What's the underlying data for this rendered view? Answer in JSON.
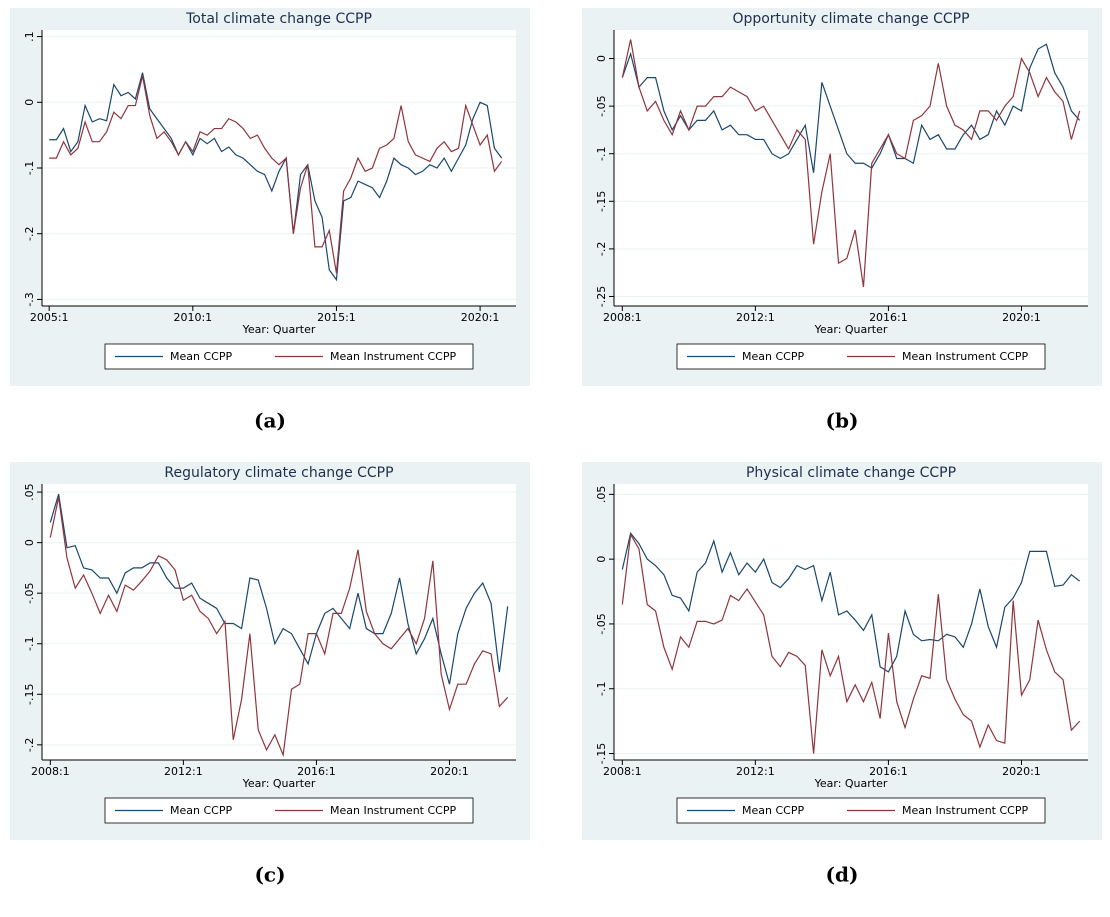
{
  "chart_data": [
    {
      "type": "line",
      "title": "Total climate change CCPP",
      "xlabel": "Year: Quarter",
      "caption": "(a)",
      "x": [
        2005,
        2005.25,
        2005.5,
        2005.75,
        2006,
        2006.25,
        2006.5,
        2006.75,
        2007,
        2007.25,
        2007.5,
        2007.75,
        2008,
        2008.25,
        2008.5,
        2008.75,
        2009,
        2009.25,
        2009.5,
        2009.75,
        2010,
        2010.25,
        2010.5,
        2010.75,
        2011,
        2011.25,
        2011.5,
        2011.75,
        2012,
        2012.25,
        2012.5,
        2012.75,
        2013,
        2013.25,
        2013.5,
        2013.75,
        2014,
        2014.25,
        2014.5,
        2014.75,
        2015,
        2015.25,
        2015.5,
        2015.75,
        2016,
        2016.25,
        2016.5,
        2016.75,
        2017,
        2017.25,
        2017.5,
        2017.75,
        2018,
        2018.25,
        2018.5,
        2018.75,
        2019,
        2019.25,
        2019.5,
        2019.75,
        2020,
        2020.25,
        2020.5,
        2020.75
      ],
      "series": [
        {
          "name": "Mean CCPP",
          "color": "#1a476f",
          "values": [
            -0.057,
            -0.057,
            -0.04,
            -0.075,
            -0.06,
            -0.005,
            -0.03,
            -0.025,
            -0.028,
            0.027,
            0.01,
            0.015,
            0.005,
            0.045,
            -0.01,
            -0.025,
            -0.04,
            -0.055,
            -0.08,
            -0.06,
            -0.08,
            -0.055,
            -0.063,
            -0.055,
            -0.075,
            -0.068,
            -0.08,
            -0.085,
            -0.095,
            -0.105,
            -0.11,
            -0.135,
            -0.105,
            -0.085,
            -0.2,
            -0.11,
            -0.095,
            -0.15,
            -0.175,
            -0.255,
            -0.27,
            -0.15,
            -0.145,
            -0.12,
            -0.125,
            -0.13,
            -0.145,
            -0.12,
            -0.085,
            -0.095,
            -0.1,
            -0.11,
            -0.105,
            -0.095,
            -0.1,
            -0.085,
            -0.105,
            -0.085,
            -0.065,
            -0.025,
            0.0,
            -0.005,
            -0.07,
            -0.085
          ]
        },
        {
          "name": "Mean Instrument CCPP",
          "color": "#90353b",
          "values": [
            -0.085,
            -0.085,
            -0.06,
            -0.08,
            -0.07,
            -0.03,
            -0.06,
            -0.06,
            -0.045,
            -0.015,
            -0.025,
            -0.005,
            -0.005,
            0.04,
            -0.02,
            -0.055,
            -0.045,
            -0.06,
            -0.08,
            -0.06,
            -0.075,
            -0.045,
            -0.05,
            -0.04,
            -0.04,
            -0.025,
            -0.03,
            -0.04,
            -0.055,
            -0.05,
            -0.07,
            -0.085,
            -0.095,
            -0.085,
            -0.2,
            -0.13,
            -0.095,
            -0.22,
            -0.22,
            -0.195,
            -0.26,
            -0.135,
            -0.115,
            -0.085,
            -0.105,
            -0.1,
            -0.07,
            -0.065,
            -0.055,
            -0.005,
            -0.06,
            -0.08,
            -0.085,
            -0.09,
            -0.07,
            -0.06,
            -0.075,
            -0.07,
            -0.005,
            -0.035,
            -0.065,
            -0.05,
            -0.105,
            -0.09
          ]
        }
      ],
      "xlim": [
        2004.75,
        2021.25
      ],
      "xticks": [
        {
          "value": 2005,
          "label": "2005:1"
        },
        {
          "value": 2010,
          "label": "2010:1"
        },
        {
          "value": 2015,
          "label": "2015:1"
        },
        {
          "value": 2020,
          "label": "2020:1"
        }
      ],
      "ylim": [
        -0.31,
        0.11
      ],
      "yticks": [
        {
          "value": -0.3,
          "label": "-.3"
        },
        {
          "value": -0.2,
          "label": "-.2"
        },
        {
          "value": -0.1,
          "label": "-.1"
        },
        0,
        {
          "value": 0.1,
          "label": ".1"
        }
      ],
      "grid": true
    },
    {
      "type": "line",
      "title": "Opportunity climate change CCPP",
      "xlabel": "Year: Quarter",
      "caption": "(b)",
      "x": [
        2008,
        2008.25,
        2008.5,
        2008.75,
        2009,
        2009.25,
        2009.5,
        2009.75,
        2010,
        2010.25,
        2010.5,
        2010.75,
        2011,
        2011.25,
        2011.5,
        2011.75,
        2012,
        2012.25,
        2012.5,
        2012.75,
        2013,
        2013.25,
        2013.5,
        2013.75,
        2014,
        2014.25,
        2014.5,
        2014.75,
        2015,
        2015.25,
        2015.5,
        2015.75,
        2016,
        2016.25,
        2016.5,
        2016.75,
        2017,
        2017.25,
        2017.5,
        2017.75,
        2018,
        2018.25,
        2018.5,
        2018.75,
        2019,
        2019.25,
        2019.5,
        2019.75,
        2020,
        2020.25,
        2020.5,
        2020.75,
        2021,
        2021.25,
        2021.5,
        2021.75
      ],
      "series": [
        {
          "name": "Mean CCPP",
          "color": "#1a476f",
          "values": [
            -0.02,
            0.005,
            -0.03,
            -0.02,
            -0.02,
            -0.055,
            -0.075,
            -0.06,
            -0.075,
            -0.065,
            -0.065,
            -0.055,
            -0.075,
            -0.07,
            -0.08,
            -0.08,
            -0.085,
            -0.085,
            -0.1,
            -0.105,
            -0.1,
            -0.085,
            -0.07,
            -0.12,
            -0.025,
            -0.05,
            -0.075,
            -0.1,
            -0.11,
            -0.11,
            -0.115,
            -0.1,
            -0.08,
            -0.105,
            -0.105,
            -0.11,
            -0.07,
            -0.085,
            -0.08,
            -0.095,
            -0.095,
            -0.08,
            -0.07,
            -0.085,
            -0.08,
            -0.055,
            -0.07,
            -0.05,
            -0.055,
            -0.01,
            0.01,
            0.015,
            -0.015,
            -0.03,
            -0.055,
            -0.065
          ]
        },
        {
          "name": "Mean Instrument CCPP",
          "color": "#90353b",
          "values": [
            -0.02,
            0.02,
            -0.03,
            -0.055,
            -0.045,
            -0.065,
            -0.08,
            -0.055,
            -0.075,
            -0.05,
            -0.05,
            -0.04,
            -0.04,
            -0.03,
            -0.035,
            -0.04,
            -0.055,
            -0.05,
            -0.065,
            -0.08,
            -0.095,
            -0.075,
            -0.085,
            -0.195,
            -0.14,
            -0.1,
            -0.215,
            -0.21,
            -0.18,
            -0.24,
            -0.11,
            -0.095,
            -0.08,
            -0.1,
            -0.105,
            -0.065,
            -0.06,
            -0.05,
            -0.005,
            -0.05,
            -0.07,
            -0.075,
            -0.085,
            -0.055,
            -0.055,
            -0.065,
            -0.05,
            -0.04,
            0.0,
            -0.015,
            -0.04,
            -0.02,
            -0.035,
            -0.045,
            -0.085,
            -0.055
          ]
        }
      ],
      "xlim": [
        2007.75,
        2022.0
      ],
      "xticks": [
        {
          "value": 2008,
          "label": "2008:1"
        },
        {
          "value": 2012,
          "label": "2012:1"
        },
        {
          "value": 2016,
          "label": "2016:1"
        },
        {
          "value": 2020,
          "label": "2020:1"
        }
      ],
      "ylim": [
        -0.26,
        0.03
      ],
      "yticks": [
        {
          "value": -0.25,
          "label": "-.25"
        },
        {
          "value": -0.2,
          "label": "-.2"
        },
        {
          "value": -0.15,
          "label": "-.15"
        },
        {
          "value": -0.1,
          "label": "-.1"
        },
        {
          "value": -0.05,
          "label": "-.05"
        },
        0
      ],
      "grid": true
    },
    {
      "type": "line",
      "title": "Regulatory climate change CCPP",
      "xlabel": "Year: Quarter",
      "caption": "(c)",
      "x": [
        2008,
        2008.25,
        2008.5,
        2008.75,
        2009,
        2009.25,
        2009.5,
        2009.75,
        2010,
        2010.25,
        2010.5,
        2010.75,
        2011,
        2011.25,
        2011.5,
        2011.75,
        2012,
        2012.25,
        2012.5,
        2012.75,
        2013,
        2013.25,
        2013.5,
        2013.75,
        2014,
        2014.25,
        2014.5,
        2014.75,
        2015,
        2015.25,
        2015.5,
        2015.75,
        2016,
        2016.25,
        2016.5,
        2016.75,
        2017,
        2017.25,
        2017.5,
        2017.75,
        2018,
        2018.25,
        2018.5,
        2018.75,
        2019,
        2019.25,
        2019.5,
        2019.75,
        2020,
        2020.25,
        2020.5,
        2020.75,
        2021,
        2021.25,
        2021.5,
        2021.75
      ],
      "series": [
        {
          "name": "Mean CCPP",
          "color": "#1a476f",
          "values": [
            0.02,
            0.048,
            -0.005,
            -0.003,
            -0.025,
            -0.027,
            -0.035,
            -0.035,
            -0.05,
            -0.03,
            -0.025,
            -0.025,
            -0.02,
            -0.02,
            -0.035,
            -0.045,
            -0.045,
            -0.04,
            -0.055,
            -0.06,
            -0.065,
            -0.08,
            -0.08,
            -0.085,
            -0.035,
            -0.037,
            -0.065,
            -0.1,
            -0.085,
            -0.09,
            -0.105,
            -0.12,
            -0.09,
            -0.07,
            -0.065,
            -0.075,
            -0.085,
            -0.05,
            -0.085,
            -0.09,
            -0.09,
            -0.07,
            -0.035,
            -0.08,
            -0.11,
            -0.095,
            -0.075,
            -0.11,
            -0.14,
            -0.09,
            -0.065,
            -0.05,
            -0.04,
            -0.06,
            -0.128,
            -0.063
          ]
        },
        {
          "name": "Mean Instrument CCPP",
          "color": "#90353b",
          "values": [
            0.005,
            0.045,
            -0.015,
            -0.045,
            -0.032,
            -0.05,
            -0.07,
            -0.052,
            -0.068,
            -0.042,
            -0.047,
            -0.038,
            -0.028,
            -0.013,
            -0.017,
            -0.027,
            -0.057,
            -0.052,
            -0.068,
            -0.075,
            -0.09,
            -0.078,
            -0.195,
            -0.155,
            -0.09,
            -0.185,
            -0.205,
            -0.19,
            -0.21,
            -0.145,
            -0.14,
            -0.09,
            -0.09,
            -0.11,
            -0.07,
            -0.07,
            -0.045,
            -0.007,
            -0.068,
            -0.09,
            -0.1,
            -0.105,
            -0.095,
            -0.085,
            -0.1,
            -0.075,
            -0.018,
            -0.13,
            -0.165,
            -0.14,
            -0.14,
            -0.12,
            -0.107,
            -0.11,
            -0.162,
            -0.153
          ]
        }
      ],
      "xlim": [
        2007.75,
        2022.0
      ],
      "xticks": [
        {
          "value": 2008,
          "label": "2008:1"
        },
        {
          "value": 2012,
          "label": "2012:1"
        },
        {
          "value": 2016,
          "label": "2016:1"
        },
        {
          "value": 2020,
          "label": "2020:1"
        }
      ],
      "ylim": [
        -0.215,
        0.058
      ],
      "yticks": [
        {
          "value": -0.2,
          "label": "-.2"
        },
        {
          "value": -0.15,
          "label": "-.15"
        },
        {
          "value": -0.1,
          "label": "-.1"
        },
        {
          "value": -0.05,
          "label": "-.05"
        },
        0,
        {
          "value": 0.05,
          "label": ".05"
        }
      ],
      "grid": true
    },
    {
      "type": "line",
      "title": "Physical climate change CCPP",
      "xlabel": "Year: Quarter",
      "caption": "(d)",
      "x": [
        2008,
        2008.25,
        2008.5,
        2008.75,
        2009,
        2009.25,
        2009.5,
        2009.75,
        2010,
        2010.25,
        2010.5,
        2010.75,
        2011,
        2011.25,
        2011.5,
        2011.75,
        2012,
        2012.25,
        2012.5,
        2012.75,
        2013,
        2013.25,
        2013.5,
        2013.75,
        2014,
        2014.25,
        2014.5,
        2014.75,
        2015,
        2015.25,
        2015.5,
        2015.75,
        2016,
        2016.25,
        2016.5,
        2016.75,
        2017,
        2017.25,
        2017.5,
        2017.75,
        2018,
        2018.25,
        2018.5,
        2018.75,
        2019,
        2019.25,
        2019.5,
        2019.75,
        2020,
        2020.25,
        2020.5,
        2020.75,
        2021,
        2021.25,
        2021.5,
        2021.75
      ],
      "series": [
        {
          "name": "Mean CCPP",
          "color": "#1a476f",
          "values": [
            -0.008,
            0.02,
            0.012,
            0.0,
            -0.005,
            -0.012,
            -0.028,
            -0.03,
            -0.04,
            -0.01,
            -0.003,
            0.014,
            -0.01,
            0.005,
            -0.012,
            -0.003,
            -0.01,
            0.0,
            -0.018,
            -0.022,
            -0.015,
            -0.005,
            -0.008,
            -0.005,
            -0.032,
            -0.01,
            -0.043,
            -0.04,
            -0.047,
            -0.055,
            -0.043,
            -0.083,
            -0.087,
            -0.075,
            -0.04,
            -0.058,
            -0.063,
            -0.062,
            -0.063,
            -0.058,
            -0.06,
            -0.068,
            -0.05,
            -0.023,
            -0.052,
            -0.068,
            -0.037,
            -0.03,
            -0.018,
            0.006,
            0.006,
            0.006,
            -0.021,
            -0.02,
            -0.012,
            -0.017
          ]
        },
        {
          "name": "Mean Instrument CCPP",
          "color": "#90353b",
          "values": [
            -0.035,
            0.019,
            0.008,
            -0.035,
            -0.04,
            -0.068,
            -0.085,
            -0.06,
            -0.068,
            -0.048,
            -0.048,
            -0.05,
            -0.047,
            -0.028,
            -0.032,
            -0.023,
            -0.033,
            -0.043,
            -0.075,
            -0.083,
            -0.072,
            -0.075,
            -0.082,
            -0.15,
            -0.07,
            -0.09,
            -0.075,
            -0.11,
            -0.097,
            -0.11,
            -0.095,
            -0.123,
            -0.057,
            -0.11,
            -0.13,
            -0.108,
            -0.09,
            -0.092,
            -0.027,
            -0.093,
            -0.108,
            -0.12,
            -0.125,
            -0.145,
            -0.128,
            -0.14,
            -0.142,
            -0.032,
            -0.105,
            -0.093,
            -0.047,
            -0.07,
            -0.087,
            -0.093,
            -0.132,
            -0.125
          ]
        }
      ],
      "xlim": [
        2007.75,
        2022.0
      ],
      "xticks": [
        {
          "value": 2008,
          "label": "2008:1"
        },
        {
          "value": 2012,
          "label": "2012:1"
        },
        {
          "value": 2016,
          "label": "2016:1"
        },
        {
          "value": 2020,
          "label": "2020:1"
        }
      ],
      "ylim": [
        -0.155,
        0.058
      ],
      "yticks": [
        {
          "value": -0.15,
          "label": "-.15"
        },
        {
          "value": -0.1,
          "label": "-.1"
        },
        {
          "value": -0.05,
          "label": "-.05"
        },
        0,
        {
          "value": 0.05,
          "label": ".05"
        }
      ],
      "grid": true
    }
  ]
}
